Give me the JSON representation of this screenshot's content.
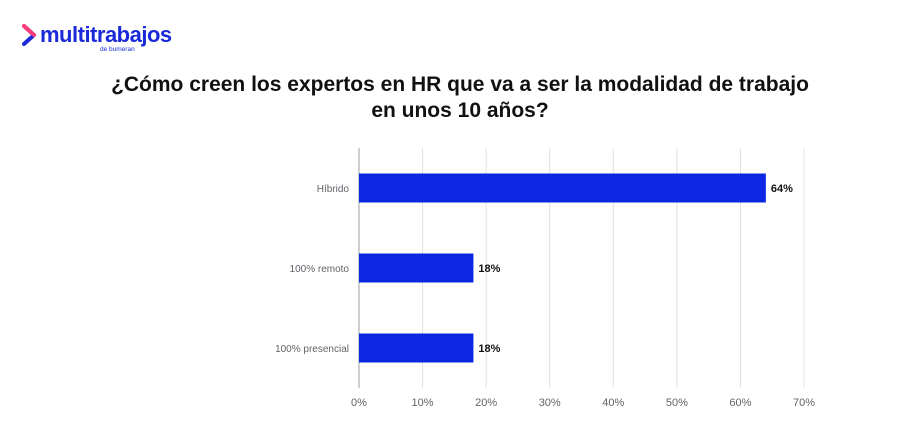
{
  "brand": {
    "name": "multitrabajos",
    "sub": "de bumeran",
    "logo_icon": "chevron-right-icon",
    "color": "#1a2ad9"
  },
  "chart_data": {
    "type": "bar",
    "orientation": "horizontal",
    "title": "¿Cómo creen los expertos en HR que va a ser la modalidad de trabajo en unos 10 años?",
    "categories": [
      "Híbrido",
      "100% remoto",
      "100% presencial"
    ],
    "values": [
      64,
      18,
      18
    ],
    "data_labels": [
      "64%",
      "18%",
      "18%"
    ],
    "xlim": [
      0,
      70
    ],
    "xticks": [
      0,
      10,
      20,
      30,
      40,
      50,
      60,
      70
    ],
    "xtick_labels": [
      "0%",
      "10%",
      "20%",
      "30%",
      "40%",
      "50%",
      "60%",
      "70%"
    ],
    "grid": true,
    "legend": "none",
    "bar_color": "#0c27e3"
  }
}
